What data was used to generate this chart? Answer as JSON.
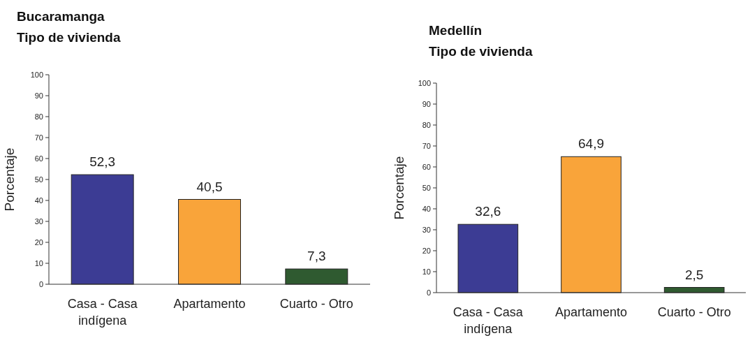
{
  "chart_data": [
    {
      "type": "bar",
      "title": "Bucaramanga",
      "subtitle": "Tipo de vivienda",
      "ylabel": "Porcentaje",
      "categories": [
        "Casa - Casa indígena",
        "Apartamento",
        "Cuarto - Otro"
      ],
      "values": [
        52.3,
        40.5,
        7.3
      ],
      "value_labels": [
        "52,3",
        "40,5",
        "7,3"
      ],
      "colors": [
        "#3c3c94",
        "#f9a43a",
        "#2f5a30"
      ],
      "ylim": [
        0,
        100
      ],
      "yticks": [
        0,
        10,
        20,
        30,
        40,
        50,
        60,
        70,
        80,
        90,
        100
      ]
    },
    {
      "type": "bar",
      "title": "Medellín",
      "subtitle": "Tipo de vivienda",
      "ylabel": "Porcentaje",
      "categories": [
        "Casa - Casa indígena",
        "Apartamento",
        "Cuarto - Otro"
      ],
      "values": [
        32.6,
        64.9,
        2.5
      ],
      "value_labels": [
        "32,6",
        "64,9",
        "2,5"
      ],
      "colors": [
        "#3c3c94",
        "#f9a43a",
        "#2f5a30"
      ],
      "ylim": [
        0,
        100
      ],
      "yticks": [
        0,
        10,
        20,
        30,
        40,
        50,
        60,
        70,
        80,
        90,
        100
      ]
    }
  ]
}
